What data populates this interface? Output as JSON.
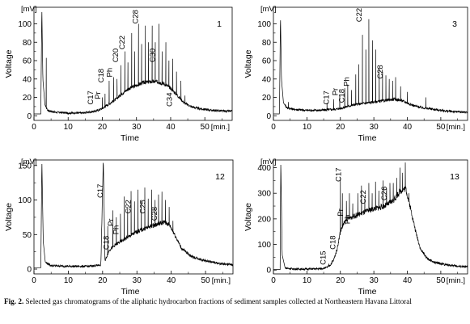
{
  "caption": {
    "label": "Fig. 2.",
    "text": "Selected gas chromatograms of the aliphatic hydrocarbon fractions of sediment samples collected at Northeastern Havana Littoral"
  },
  "chart_data": [
    {
      "type": "line",
      "panel_id": "1",
      "xlabel": "Time",
      "ylabel": "Voltage",
      "x_unit": "[min.]",
      "y_unit": "[mV]",
      "xlim": [
        0,
        58
      ],
      "ylim": [
        -5,
        118
      ],
      "xticks": [
        0,
        10,
        20,
        30,
        40,
        50
      ],
      "yticks": [
        0,
        20,
        40,
        60,
        80,
        100
      ],
      "baseline": [
        [
          0,
          2
        ],
        [
          2,
          2
        ],
        [
          2.3,
          118
        ],
        [
          2.6,
          40
        ],
        [
          3.2,
          12
        ],
        [
          4,
          6
        ],
        [
          6,
          4
        ],
        [
          10,
          3
        ],
        [
          14,
          3
        ],
        [
          18,
          5
        ],
        [
          20,
          8
        ],
        [
          22,
          13
        ],
        [
          24,
          18
        ],
        [
          26,
          25
        ],
        [
          28,
          30
        ],
        [
          30,
          33
        ],
        [
          32,
          36
        ],
        [
          34,
          37
        ],
        [
          36,
          37
        ],
        [
          38,
          35
        ],
        [
          40,
          30
        ],
        [
          42,
          22
        ],
        [
          44,
          14
        ],
        [
          46,
          10
        ],
        [
          48,
          8
        ],
        [
          52,
          6
        ],
        [
          56,
          5
        ],
        [
          58,
          5
        ]
      ],
      "peaks": [
        [
          3.6,
          63
        ],
        [
          20.0,
          20
        ],
        [
          20.8,
          24
        ],
        [
          22.0,
          38
        ],
        [
          23.3,
          42
        ],
        [
          24.3,
          40
        ],
        [
          25.4,
          55
        ],
        [
          26.6,
          70
        ],
        [
          27.5,
          58
        ],
        [
          28.6,
          90
        ],
        [
          29.5,
          70
        ],
        [
          30.6,
          100
        ],
        [
          31.5,
          78
        ],
        [
          32.6,
          98
        ],
        [
          33.5,
          80
        ],
        [
          34.6,
          98
        ],
        [
          35.5,
          80
        ],
        [
          36.6,
          100
        ],
        [
          37.5,
          70
        ],
        [
          38.6,
          80
        ],
        [
          39.5,
          60
        ],
        [
          40.6,
          62
        ],
        [
          41.7,
          48
        ],
        [
          43.0,
          38
        ],
        [
          44.2,
          22
        ]
      ],
      "annotations": [
        "C17",
        "Pr",
        "C18",
        "Ph",
        "C20",
        "C22",
        "C28",
        "C30",
        "C34"
      ]
    },
    {
      "type": "line",
      "panel_id": "3",
      "xlabel": "Time",
      "ylabel": "Voltage",
      "x_unit": "[min.]",
      "y_unit": "[mV]",
      "xlim": [
        0,
        58
      ],
      "ylim": [
        -5,
        118
      ],
      "xticks": [
        0,
        10,
        20,
        30,
        40,
        50
      ],
      "yticks": [
        0,
        20,
        40,
        60,
        80,
        100
      ],
      "baseline": [
        [
          0,
          2
        ],
        [
          1.8,
          2
        ],
        [
          2.1,
          110
        ],
        [
          2.4,
          40
        ],
        [
          3,
          14
        ],
        [
          4,
          9
        ],
        [
          6,
          7
        ],
        [
          10,
          6
        ],
        [
          14,
          6
        ],
        [
          18,
          7
        ],
        [
          20,
          8
        ],
        [
          22,
          10
        ],
        [
          24,
          12
        ],
        [
          26,
          13
        ],
        [
          28,
          14
        ],
        [
          30,
          15
        ],
        [
          32,
          16
        ],
        [
          34,
          17
        ],
        [
          36,
          18
        ],
        [
          38,
          17
        ],
        [
          40,
          14
        ],
        [
          42,
          11
        ],
        [
          44,
          9
        ],
        [
          48,
          7
        ],
        [
          52,
          5
        ],
        [
          56,
          4
        ],
        [
          58,
          4
        ]
      ],
      "peaks": [
        [
          4.5,
          15
        ],
        [
          16.0,
          14
        ],
        [
          18.0,
          18
        ],
        [
          19.8,
          22
        ],
        [
          21.3,
          30
        ],
        [
          22.2,
          34
        ],
        [
          23.3,
          28
        ],
        [
          24.6,
          45
        ],
        [
          25.5,
          56
        ],
        [
          26.6,
          88
        ],
        [
          27.6,
          72
        ],
        [
          28.5,
          105
        ],
        [
          29.6,
          82
        ],
        [
          30.6,
          72
        ],
        [
          31.6,
          52
        ],
        [
          32.6,
          48
        ],
        [
          33.6,
          44
        ],
        [
          34.6,
          40
        ],
        [
          35.6,
          38
        ],
        [
          36.5,
          42
        ],
        [
          38.0,
          32
        ],
        [
          40.0,
          26
        ],
        [
          45.5,
          20
        ]
      ],
      "annotations": [
        "C17",
        "Pr",
        "C18",
        "Ph",
        "C22",
        "C28"
      ]
    },
    {
      "type": "line",
      "panel_id": "12",
      "xlabel": "Time",
      "ylabel": "Voltage",
      "x_unit": "[min.]",
      "y_unit": "[mV]",
      "xlim": [
        0,
        58
      ],
      "ylim": [
        -7,
        158
      ],
      "xticks": [
        0,
        10,
        20,
        30,
        40,
        50
      ],
      "yticks": [
        0,
        50,
        100,
        150
      ],
      "baseline": [
        [
          0,
          2
        ],
        [
          2.0,
          2
        ],
        [
          2.3,
          158
        ],
        [
          2.7,
          40
        ],
        [
          3.3,
          10
        ],
        [
          5,
          5
        ],
        [
          10,
          4
        ],
        [
          16,
          4
        ],
        [
          19.5,
          6
        ],
        [
          20.2,
          160
        ],
        [
          20.7,
          12
        ],
        [
          22,
          28
        ],
        [
          24,
          36
        ],
        [
          26,
          42
        ],
        [
          28,
          48
        ],
        [
          30,
          54
        ],
        [
          32,
          58
        ],
        [
          34,
          62
        ],
        [
          36,
          65
        ],
        [
          38,
          68
        ],
        [
          39.5,
          64
        ],
        [
          41,
          50
        ],
        [
          43,
          30
        ],
        [
          46,
          18
        ],
        [
          50,
          12
        ],
        [
          54,
          8
        ],
        [
          58,
          6
        ]
      ],
      "peaks": [
        [
          21.5,
          62
        ],
        [
          23.0,
          85
        ],
        [
          24.0,
          75
        ],
        [
          25.2,
          80
        ],
        [
          26.3,
          105
        ],
        [
          27.3,
          90
        ],
        [
          28.3,
          113
        ],
        [
          29.3,
          98
        ],
        [
          30.3,
          115
        ],
        [
          31.3,
          100
        ],
        [
          32.3,
          118
        ],
        [
          33.3,
          102
        ],
        [
          34.3,
          115
        ],
        [
          35.3,
          100
        ],
        [
          36.3,
          108
        ],
        [
          37.3,
          112
        ],
        [
          38.3,
          100
        ],
        [
          39.4,
          90
        ],
        [
          40.5,
          70
        ]
      ],
      "annotations": [
        "C17",
        "C18",
        "Pr",
        "Ph",
        "C22",
        "C25",
        "C28"
      ]
    },
    {
      "type": "line",
      "panel_id": "13",
      "xlabel": "Time",
      "ylabel": "Voltage",
      "x_unit": "[min.]",
      "y_unit": "[mV]",
      "xlim": [
        0,
        58
      ],
      "ylim": [
        -15,
        430
      ],
      "xticks": [
        0,
        10,
        20,
        30,
        40,
        50
      ],
      "yticks": [
        0,
        100,
        200,
        300,
        400
      ],
      "baseline": [
        [
          0,
          2
        ],
        [
          2,
          2
        ],
        [
          2.2,
          430
        ],
        [
          2.6,
          60
        ],
        [
          3.5,
          8
        ],
        [
          6,
          4
        ],
        [
          10,
          4
        ],
        [
          14,
          5
        ],
        [
          16,
          10
        ],
        [
          17,
          20
        ],
        [
          18,
          40
        ],
        [
          19,
          80
        ],
        [
          20,
          150
        ],
        [
          21,
          180
        ],
        [
          22,
          200
        ],
        [
          24,
          210
        ],
        [
          26,
          220
        ],
        [
          28,
          230
        ],
        [
          30,
          240
        ],
        [
          32,
          245
        ],
        [
          34,
          255
        ],
        [
          36,
          275
        ],
        [
          38,
          310
        ],
        [
          39.5,
          320
        ],
        [
          41,
          240
        ],
        [
          42.5,
          150
        ],
        [
          44,
          80
        ],
        [
          46,
          45
        ],
        [
          48,
          30
        ],
        [
          52,
          20
        ],
        [
          56,
          14
        ],
        [
          58,
          12
        ]
      ],
      "peaks": [
        [
          16.5,
          25
        ],
        [
          20.0,
          360
        ],
        [
          20.6,
          300
        ],
        [
          21.8,
          270
        ],
        [
          22.7,
          300
        ],
        [
          23.7,
          260
        ],
        [
          25.2,
          300
        ],
        [
          26.3,
          330
        ],
        [
          27.3,
          280
        ],
        [
          28.5,
          340
        ],
        [
          29.5,
          300
        ],
        [
          30.5,
          345
        ],
        [
          31.5,
          310
        ],
        [
          32.8,
          350
        ],
        [
          33.8,
          320
        ],
        [
          34.8,
          340
        ],
        [
          35.8,
          340
        ],
        [
          36.8,
          360
        ],
        [
          37.8,
          400
        ],
        [
          38.6,
          380
        ],
        [
          39.4,
          420
        ],
        [
          40.5,
          300
        ]
      ],
      "annotations": [
        "C15",
        "C18",
        "Pr",
        "C17",
        "Ph",
        "C22",
        "C26"
      ]
    }
  ]
}
